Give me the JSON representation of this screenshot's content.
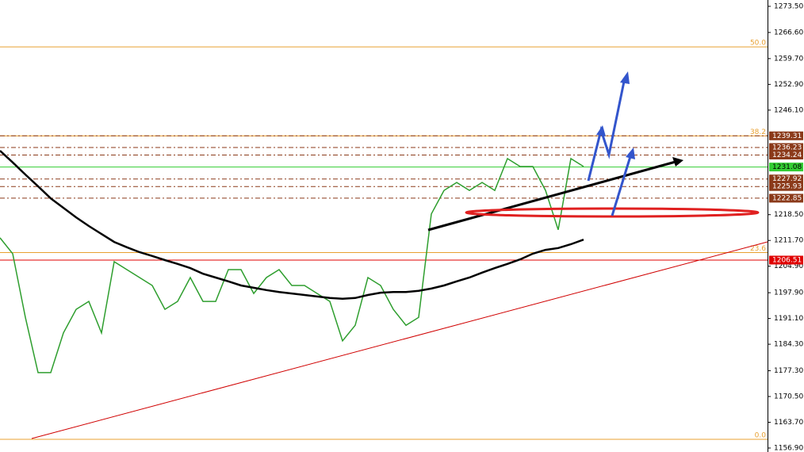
{
  "chart_data": {
    "type": "line",
    "categories": [
      null,
      null,
      null,
      null,
      null,
      null,
      null,
      null,
      null,
      null,
      null,
      null,
      null,
      null,
      null,
      null,
      null,
      null,
      null,
      null,
      null,
      null,
      null,
      null,
      null,
      null,
      null,
      null,
      null,
      null,
      null,
      null,
      null,
      null,
      null,
      null,
      null,
      null,
      null,
      null,
      null,
      null,
      null,
      null,
      null,
      null,
      null
    ],
    "series": [
      {
        "color": "#2e9e2e",
        "values": [
          1212.4,
          1208.2,
          1191.4,
          1176.8,
          1176.8,
          1187.3,
          1193.5,
          1195.6,
          1187.3,
          1206.1,
          1204.0,
          1201.9,
          1199.8,
          1193.5,
          1195.6,
          1201.9,
          1195.6,
          1195.6,
          1204.0,
          1204.0,
          1197.7,
          1201.9,
          1204.0,
          1199.8,
          1199.8,
          1197.7,
          1195.6,
          1185.2,
          1189.3,
          1201.9,
          1199.8,
          1193.5,
          1189.3,
          1191.4,
          1218.7,
          1224.9,
          1227.0,
          1224.9,
          1227.0,
          1224.9,
          1233.3,
          1231.2,
          1231.2,
          1224.9,
          1214.5,
          1233.3,
          1231.2
        ]
      },
      {
        "color": "#000000",
        "values": [
          1235.4,
          1232.3,
          1229.1,
          1226.0,
          1222.8,
          1220.3,
          1217.8,
          1215.5,
          1213.4,
          1211.3,
          1209.9,
          1208.6,
          1207.6,
          1206.5,
          1205.5,
          1204.4,
          1202.9,
          1201.9,
          1200.9,
          1199.8,
          1199.2,
          1198.6,
          1198.1,
          1197.7,
          1197.3,
          1196.9,
          1196.5,
          1196.3,
          1196.5,
          1197.3,
          1197.9,
          1198.1,
          1198.1,
          1198.4,
          1199.0,
          1199.8,
          1200.9,
          1201.9,
          1203.2,
          1204.4,
          1205.5,
          1206.7,
          1208.2,
          1209.2,
          1209.7,
          1210.7,
          1211.9
        ]
      }
    ],
    "ylim": [
      1155.85,
      1275.17
    ],
    "yticks": [
      {
        "value": 1273.5,
        "label": "1273.50"
      },
      {
        "value": 1266.6,
        "label": "1266.60"
      },
      {
        "value": 1259.7,
        "label": "1259.70"
      },
      {
        "value": 1252.9,
        "label": "1252.90"
      },
      {
        "value": 1246.1,
        "label": "1246.10"
      },
      {
        "value": 1218.5,
        "label": "1218.50"
      },
      {
        "value": 1211.7,
        "label": "1211.70"
      },
      {
        "value": 1204.9,
        "label": "1204.90"
      },
      {
        "value": 1197.9,
        "label": "1197.90"
      },
      {
        "value": 1191.1,
        "label": "1191.10"
      },
      {
        "value": 1184.3,
        "label": "1184.30"
      },
      {
        "value": 1177.3,
        "label": "1177.30"
      },
      {
        "value": 1170.5,
        "label": "1170.50"
      },
      {
        "value": 1163.7,
        "label": "1163.70"
      },
      {
        "value": 1156.9,
        "label": "1156.90"
      }
    ],
    "levels": [
      {
        "value": 1239.31,
        "label": "1239.31",
        "color": "#8b3a1a"
      },
      {
        "value": 1236.23,
        "label": "1236.23",
        "color": "#8b3a1a"
      },
      {
        "value": 1234.24,
        "label": "1234.24",
        "color": "#8b3a1a"
      },
      {
        "value": 1231.08,
        "label": "1231.08",
        "color": "#32cd32"
      },
      {
        "value": 1227.92,
        "label": "1227.92",
        "color": "#8b3a1a"
      },
      {
        "value": 1225.93,
        "label": "1225.93",
        "color": "#8b3a1a"
      },
      {
        "value": 1222.85,
        "label": "1222.85",
        "color": "#8b3a1a"
      },
      {
        "value": 1206.51,
        "label": "1206.51",
        "color": "#e00000"
      }
    ],
    "fib": [
      {
        "label": "50.0",
        "value": 1262.8
      },
      {
        "label": "38.2",
        "value": 1239.3
      },
      {
        "label": "23.6",
        "value": 1208.5
      },
      {
        "label": "0.0",
        "value": 1159.2
      }
    ]
  }
}
